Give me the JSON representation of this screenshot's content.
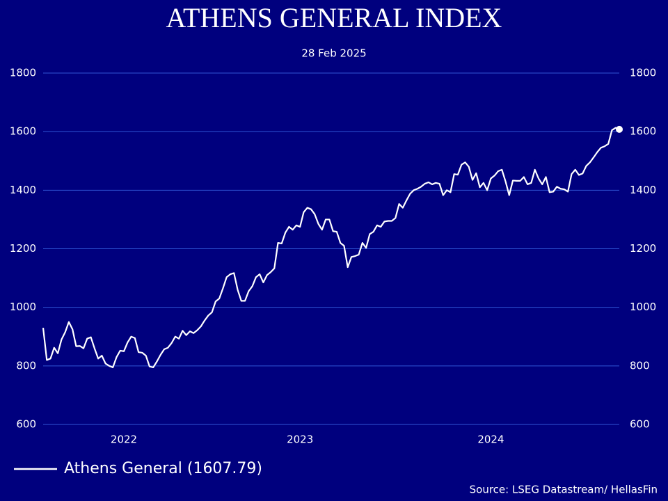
{
  "chart_data": {
    "type": "line",
    "title": "ATHENS GENERAL INDEX",
    "subtitle": "28 Feb 2025",
    "source": "Source: LSEG Datastream/ HellasFin",
    "categories": [
      null,
      null,
      null,
      null,
      null,
      null,
      null,
      null,
      null,
      null,
      null,
      null,
      null,
      null,
      null,
      null,
      null,
      null,
      null,
      null,
      null,
      null,
      "2022",
      null,
      null,
      null,
      null,
      null,
      null,
      null,
      null,
      null,
      null,
      null,
      null,
      null,
      null,
      null,
      null,
      null,
      null,
      null,
      null,
      null,
      null,
      null,
      null,
      null,
      null,
      null,
      null,
      null,
      null,
      null,
      null,
      null,
      null,
      null,
      null,
      null,
      null,
      null,
      null,
      null,
      null,
      null,
      null,
      null,
      null,
      null,
      "2023",
      null,
      null,
      null,
      null,
      null,
      null,
      null,
      null,
      null,
      null,
      null,
      null,
      null,
      null,
      null,
      null,
      null,
      null,
      null,
      null,
      null,
      null,
      null,
      null,
      null,
      null,
      null,
      null,
      null,
      null,
      null,
      null,
      null,
      null,
      null,
      null,
      null,
      null,
      null,
      null,
      null,
      null,
      null,
      null,
      null,
      null,
      null,
      null,
      null,
      null,
      null,
      "2024",
      null,
      null,
      null,
      null,
      null,
      null,
      null,
      null,
      null,
      null,
      null,
      null,
      null,
      null,
      null,
      null,
      null,
      null,
      null,
      null,
      null,
      null,
      null,
      null,
      null,
      null,
      null,
      null,
      null,
      null,
      null,
      null,
      null,
      null,
      null
    ],
    "series": [
      {
        "name": "Athens General (1607.79)",
        "color": "#ffffff",
        "values": [
          930,
          820,
          825,
          862,
          843,
          890,
          915,
          950,
          925,
          867,
          868,
          860,
          893,
          898,
          860,
          825,
          835,
          808,
          800,
          795,
          830,
          852,
          850,
          880,
          900,
          895,
          847,
          845,
          835,
          798,
          795,
          815,
          838,
          857,
          862,
          878,
          900,
          893,
          920,
          905,
          918,
          912,
          922,
          935,
          955,
          972,
          983,
          1020,
          1030,
          1065,
          1103,
          1113,
          1117,
          1060,
          1022,
          1022,
          1055,
          1072,
          1103,
          1113,
          1085,
          1110,
          1120,
          1133,
          1220,
          1218,
          1255,
          1275,
          1265,
          1280,
          1275,
          1325,
          1340,
          1335,
          1318,
          1285,
          1265,
          1300,
          1300,
          1260,
          1258,
          1220,
          1210,
          1137,
          1172,
          1175,
          1180,
          1220,
          1203,
          1250,
          1258,
          1280,
          1275,
          1293,
          1295,
          1295,
          1305,
          1353,
          1340,
          1365,
          1388,
          1400,
          1405,
          1412,
          1422,
          1427,
          1420,
          1425,
          1422,
          1383,
          1400,
          1393,
          1455,
          1453,
          1487,
          1495,
          1480,
          1435,
          1458,
          1410,
          1425,
          1400,
          1440,
          1450,
          1465,
          1470,
          1430,
          1383,
          1433,
          1432,
          1432,
          1445,
          1420,
          1425,
          1470,
          1440,
          1420,
          1445,
          1393,
          1395,
          1412,
          1405,
          1403,
          1395,
          1455,
          1470,
          1452,
          1457,
          1483,
          1495,
          1512,
          1530,
          1545,
          1550,
          1558,
          1605,
          1613,
          1607.79
        ]
      }
    ],
    "ylim": [
      600,
      1800
    ],
    "yticks": [
      600,
      800,
      1000,
      1200,
      1400,
      1600,
      1800
    ],
    "grid": true,
    "grid_color": "#2f55d4",
    "legend": "bottom-left"
  }
}
